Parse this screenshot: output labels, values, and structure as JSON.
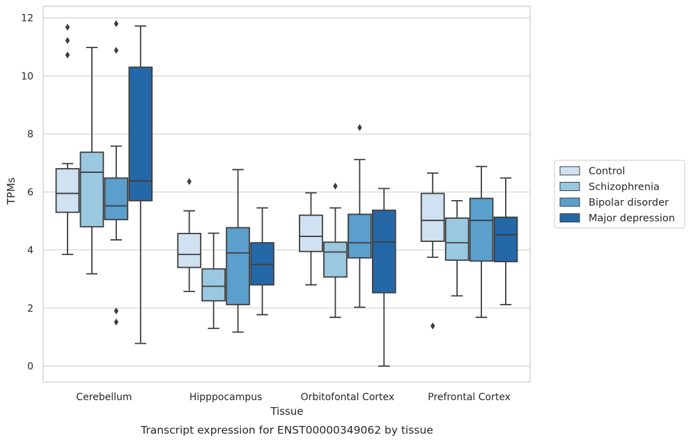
{
  "caption": "Transcript expression for ENST00000349062 by tissue",
  "chart_data": {
    "type": "box",
    "xlabel": "Tissue",
    "ylabel": "TPMs",
    "ylim": [
      -0.55,
      12.4
    ],
    "yticks": [
      0,
      2,
      4,
      6,
      8,
      10,
      12
    ],
    "grid": "horizontal",
    "legend_position": "right",
    "categories": [
      "Cerebellum",
      "Hipppocampus",
      "Orbitofontal Cortex",
      "Prefrontal Cortex"
    ],
    "series": [
      {
        "name": "Control",
        "color": "#d0e1f2",
        "boxes": [
          {
            "whislo": 3.85,
            "q1": 5.3,
            "med": 5.95,
            "q3": 6.8,
            "whishi": 6.98,
            "fliers": [
              11.68,
              11.22,
              10.72
            ]
          },
          {
            "whislo": 2.57,
            "q1": 3.4,
            "med": 3.85,
            "q3": 4.57,
            "whishi": 5.35,
            "fliers": [
              6.36
            ]
          },
          {
            "whislo": 2.8,
            "q1": 3.95,
            "med": 4.47,
            "q3": 5.2,
            "whishi": 5.97,
            "fliers": []
          },
          {
            "whislo": 3.75,
            "q1": 4.3,
            "med": 5.02,
            "q3": 5.95,
            "whishi": 6.65,
            "fliers": [
              1.38
            ]
          }
        ]
      },
      {
        "name": "Schizophrenia",
        "color": "#9ac8e0",
        "boxes": [
          {
            "whislo": 3.18,
            "q1": 4.8,
            "med": 6.68,
            "q3": 7.37,
            "whishi": 10.98,
            "fliers": []
          },
          {
            "whislo": 1.3,
            "q1": 2.25,
            "med": 2.75,
            "q3": 3.35,
            "whishi": 4.58,
            "fliers": []
          },
          {
            "whislo": 1.68,
            "q1": 3.07,
            "med": 3.93,
            "q3": 4.27,
            "whishi": 5.45,
            "fliers": [
              6.2
            ]
          },
          {
            "whislo": 2.42,
            "q1": 3.65,
            "med": 4.25,
            "q3": 5.1,
            "whishi": 5.7,
            "fliers": []
          }
        ]
      },
      {
        "name": "Bipolar disorder",
        "color": "#5b9fcc",
        "boxes": [
          {
            "whislo": 4.35,
            "q1": 5.05,
            "med": 5.52,
            "q3": 6.48,
            "whishi": 7.58,
            "fliers": [
              11.8,
              10.88,
              1.9,
              1.52
            ]
          },
          {
            "whislo": 1.17,
            "q1": 2.12,
            "med": 3.9,
            "q3": 4.77,
            "whishi": 6.77,
            "fliers": []
          },
          {
            "whislo": 2.03,
            "q1": 3.73,
            "med": 4.25,
            "q3": 5.23,
            "whishi": 7.12,
            "fliers": [
              8.22
            ]
          },
          {
            "whislo": 1.68,
            "q1": 3.62,
            "med": 5.02,
            "q3": 5.78,
            "whishi": 6.88,
            "fliers": []
          }
        ]
      },
      {
        "name": "Major depression",
        "color": "#2468a8",
        "boxes": [
          {
            "whislo": 0.78,
            "q1": 5.7,
            "med": 6.38,
            "q3": 10.3,
            "whishi": 11.72,
            "fliers": []
          },
          {
            "whislo": 1.77,
            "q1": 2.8,
            "med": 3.5,
            "q3": 4.25,
            "whishi": 5.45,
            "fliers": []
          },
          {
            "whislo": 0.0,
            "q1": 2.53,
            "med": 4.27,
            "q3": 5.37,
            "whishi": 6.12,
            "fliers": []
          },
          {
            "whislo": 2.12,
            "q1": 3.6,
            "med": 4.53,
            "q3": 5.13,
            "whishi": 6.48,
            "fliers": []
          }
        ]
      }
    ]
  }
}
